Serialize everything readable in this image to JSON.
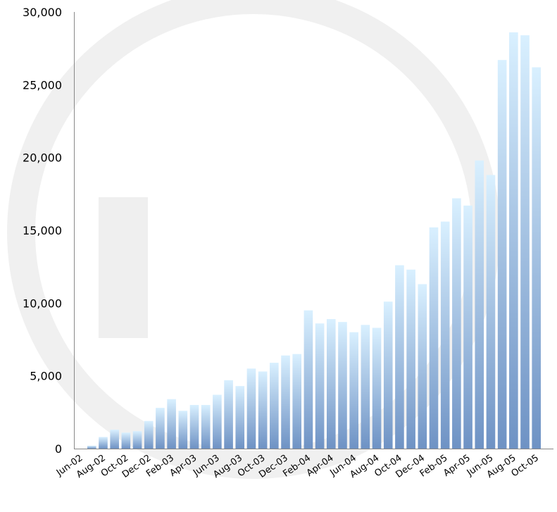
{
  "chart_data": {
    "type": "bar",
    "title": "",
    "xlabel": "",
    "ylabel": "",
    "ylim": [
      0,
      30000
    ],
    "yticks": [
      0,
      5000,
      10000,
      15000,
      20000,
      25000,
      30000
    ],
    "ytick_labels": [
      "0",
      "5,000",
      "10,000",
      "15,000",
      "20,000",
      "25,000",
      "30,000"
    ],
    "grid": false,
    "legend": "none",
    "bar_gradient": {
      "top": "#d9f0ff",
      "bottom": "#6e92c4"
    },
    "categories": [
      "Jun-02",
      "Jul-02",
      "Aug-02",
      "Sep-02",
      "Oct-02",
      "Nov-02",
      "Dec-02",
      "Jan-03",
      "Feb-03",
      "Mar-03",
      "Apr-03",
      "May-03",
      "Jun-03",
      "Jul-03",
      "Aug-03",
      "Sep-03",
      "Oct-03",
      "Nov-03",
      "Dec-03",
      "Jan-04",
      "Feb-04",
      "Mar-04",
      "Apr-04",
      "May-04",
      "Jun-04",
      "Jul-04",
      "Aug-04",
      "Sep-04",
      "Oct-04",
      "Nov-04",
      "Dec-04",
      "Jan-05",
      "Feb-05",
      "Mar-05",
      "Apr-05",
      "May-05",
      "Jun-05",
      "Jul-05",
      "Aug-05",
      "Sep-05",
      "Oct-05",
      "Nov-05"
    ],
    "values": [
      0,
      200,
      800,
      1300,
      1100,
      1200,
      1900,
      2800,
      3400,
      2600,
      3000,
      3000,
      3700,
      4700,
      4300,
      5500,
      5300,
      5900,
      6400,
      6500,
      9500,
      8600,
      8900,
      8700,
      8000,
      8500,
      8300,
      10100,
      12600,
      12300,
      11300,
      15200,
      15600,
      17200,
      16700,
      19800,
      18800,
      26700,
      28600,
      28400,
      26200,
      0
    ],
    "xtick_labels": [
      "Jun-02",
      "Aug-02",
      "Oct-02",
      "Dec-02",
      "Feb-03",
      "Apr-03",
      "Jun-03",
      "Aug-03",
      "Oct-03",
      "Dec-03",
      "Feb-04",
      "Apr-04",
      "Jun-04",
      "Aug-04",
      "Oct-04",
      "Dec-04",
      "Feb-05",
      "Apr-05",
      "Jun-05",
      "Aug-05",
      "Oct-05"
    ]
  }
}
